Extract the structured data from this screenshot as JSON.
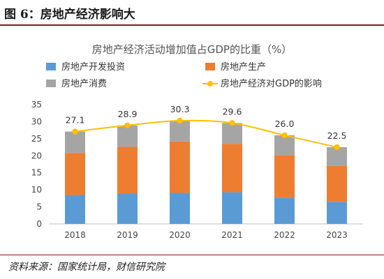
{
  "figure": {
    "title": "图 6：房地产经济影响大",
    "source": "资料来源：国家统计局，财信研究院"
  },
  "chart_data": {
    "type": "bar",
    "stacked": true,
    "title": "房地产经济活动增加值占GDP的比重（%）",
    "categories": [
      "2018",
      "2019",
      "2020",
      "2021",
      "2022",
      "2023"
    ],
    "ylim": [
      0,
      35
    ],
    "yticks": [
      "0",
      "5",
      "10",
      "15",
      "20",
      "25",
      "30",
      "35"
    ],
    "series": [
      {
        "name": "房地产开发投资",
        "type": "bar",
        "color": "#5b9bd5",
        "values": [
          8.5,
          8.8,
          9.1,
          9.3,
          7.7,
          6.5
        ]
      },
      {
        "name": "房地产生产",
        "type": "bar",
        "color": "#ed7d31",
        "values": [
          12.3,
          13.8,
          15.1,
          14.2,
          12.5,
          10.5
        ]
      },
      {
        "name": "房地产消费",
        "type": "bar",
        "color": "#a5a5a5",
        "values": [
          6.3,
          6.3,
          6.1,
          6.1,
          5.8,
          5.5
        ]
      },
      {
        "name": "房地产经济对GDP的影响",
        "type": "line",
        "color": "#ffc000",
        "values": [
          27.1,
          28.9,
          30.3,
          29.6,
          26.0,
          22.5
        ],
        "labels": [
          "27.1",
          "28.9",
          "30.3",
          "29.6",
          "26.0",
          "22.5"
        ]
      }
    ],
    "grid": false,
    "legend_position": "top"
  }
}
